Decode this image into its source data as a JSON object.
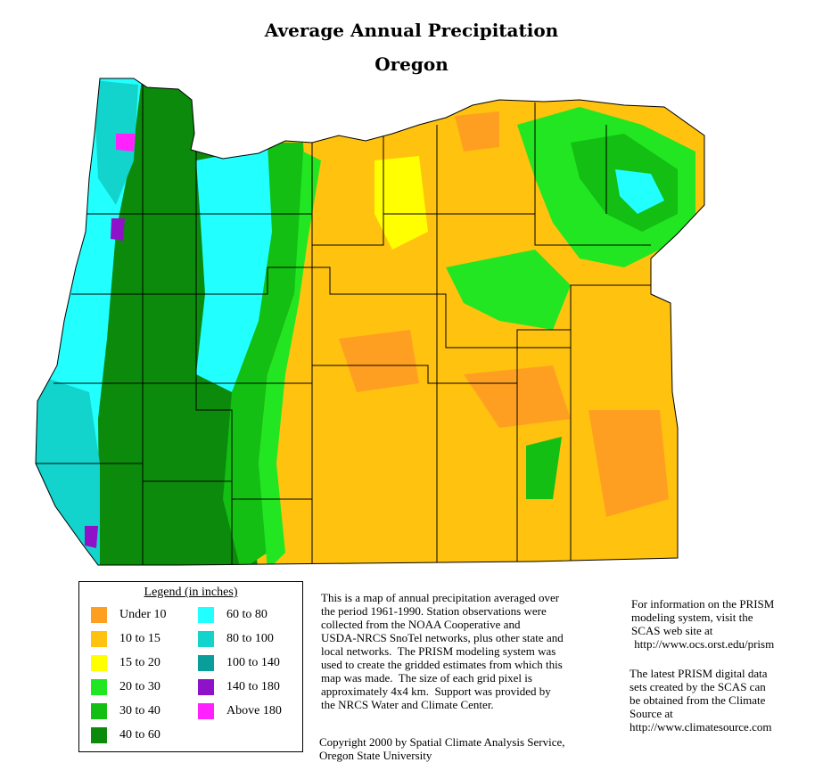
{
  "title": "Average Annual Precipitation",
  "subtitle": "Oregon",
  "legend": {
    "title": "Legend (in inches)",
    "items": [
      {
        "label": "Under 10",
        "color": "#ff9f22"
      },
      {
        "label": "10 to 15",
        "color": "#ffc20f"
      },
      {
        "label": "15 to 20",
        "color": "#ffff00"
      },
      {
        "label": "20 to 30",
        "color": "#22e622"
      },
      {
        "label": "30 to 40",
        "color": "#12bf12"
      },
      {
        "label": "40 to 60",
        "color": "#0b8a0b"
      },
      {
        "label": "60 to 80",
        "color": "#22ffff"
      },
      {
        "label": "80 to 100",
        "color": "#12d4cc"
      },
      {
        "label": "100 to 140",
        "color": "#0a9e9a"
      },
      {
        "label": "140 to 180",
        "color": "#9012c8"
      },
      {
        "label": "Above 180",
        "color": "#ff22ff"
      }
    ]
  },
  "description": "This is a map of annual precipitation averaged over\nthe period 1961-1990. Station observations were\ncollected from the NOAA Cooperative and\nUSDA-NRCS SnoTel networks, plus other state and\nlocal networks.  The PRISM modeling system was\nused to create the gridded estimates from which this\nmap was made.  The size of each grid pixel is\napproximately 4x4 km.  Support was provided by\nthe NRCS Water and Climate Center.",
  "copyright": "Copyright 2000 by Spatial Climate Analysis Service,\nOregon State University",
  "info_prism": "For information on the PRISM\nmodeling system, visit the\nSCAS web site at\n http://www.ocs.orst.edu/prism",
  "info_data": "The latest PRISM digital data\nsets created by the SCAS can\nbe obtained from the Climate\nSource at\nhttp://www.climatesource.com"
}
